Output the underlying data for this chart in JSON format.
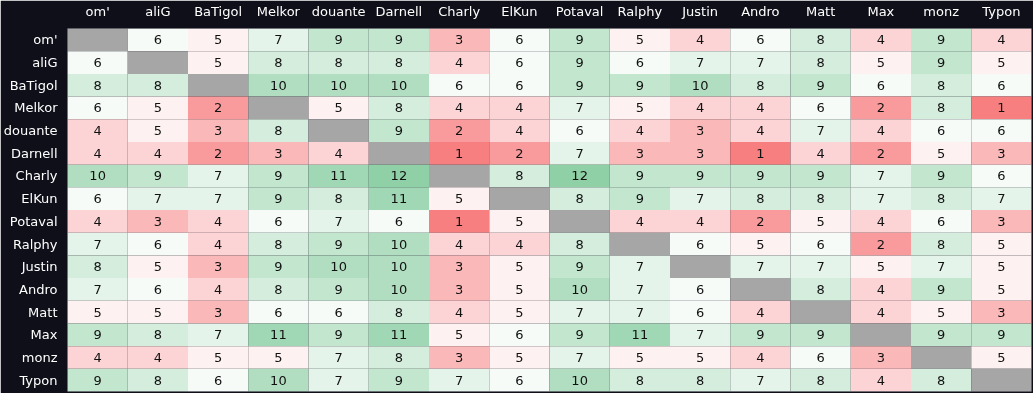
{
  "chart_data": {
    "type": "heatmap",
    "categories": [
      "om'",
      "aliG",
      "BaTigol",
      "Melkor",
      "douante",
      "Darnell",
      "Charly",
      "ElKun",
      "Potaval",
      "Ralphy",
      "Justin",
      "Andro",
      "Matt",
      "Max",
      "monz",
      "Typon"
    ],
    "y_categories": [
      "om'",
      "aliG",
      "BaTigol",
      "Melkor",
      "douante",
      "Darnell",
      "Charly",
      "ElKun",
      "Potaval",
      "Ralphy",
      "Justin",
      "Andro",
      "Matt",
      "Max",
      "monz",
      "Typon"
    ],
    "cells": [
      [
        null,
        6,
        5,
        7,
        9,
        9,
        3,
        6,
        9,
        5,
        4,
        6,
        8,
        4,
        9,
        4
      ],
      [
        6,
        null,
        5,
        8,
        8,
        8,
        4,
        6,
        9,
        6,
        7,
        7,
        8,
        5,
        9,
        5
      ],
      [
        8,
        8,
        null,
        10,
        10,
        10,
        6,
        6,
        9,
        9,
        10,
        8,
        9,
        6,
        8,
        6
      ],
      [
        6,
        5,
        2,
        null,
        5,
        8,
        4,
        4,
        7,
        5,
        4,
        4,
        6,
        2,
        8,
        1
      ],
      [
        4,
        5,
        3,
        8,
        null,
        9,
        2,
        4,
        6,
        4,
        3,
        4,
        7,
        4,
        6,
        6
      ],
      [
        4,
        4,
        2,
        3,
        4,
        null,
        1,
        2,
        7,
        3,
        3,
        1,
        4,
        2,
        5,
        3
      ],
      [
        10,
        9,
        7,
        9,
        11,
        12,
        null,
        8,
        12,
        9,
        9,
        9,
        9,
        7,
        9,
        6
      ],
      [
        6,
        7,
        7,
        9,
        8,
        11,
        5,
        null,
        8,
        9,
        7,
        8,
        8,
        7,
        8,
        7
      ],
      [
        4,
        3,
        4,
        6,
        7,
        6,
        1,
        5,
        null,
        4,
        4,
        2,
        5,
        4,
        6,
        3
      ],
      [
        7,
        6,
        4,
        8,
        9,
        10,
        4,
        4,
        8,
        null,
        6,
        5,
        6,
        2,
        8,
        5
      ],
      [
        8,
        5,
        3,
        9,
        10,
        10,
        3,
        5,
        9,
        7,
        null,
        7,
        7,
        5,
        7,
        5
      ],
      [
        7,
        6,
        4,
        8,
        9,
        10,
        3,
        5,
        10,
        7,
        6,
        null,
        8,
        4,
        9,
        5
      ],
      [
        5,
        5,
        3,
        6,
        6,
        8,
        4,
        5,
        7,
        7,
        6,
        4,
        null,
        4,
        5,
        3
      ],
      [
        9,
        8,
        7,
        11,
        9,
        11,
        5,
        6,
        9,
        11,
        7,
        9,
        9,
        null,
        9,
        9
      ],
      [
        4,
        4,
        5,
        5,
        7,
        8,
        3,
        5,
        7,
        5,
        5,
        4,
        6,
        3,
        null,
        5
      ],
      [
        9,
        8,
        6,
        10,
        7,
        9,
        7,
        6,
        10,
        8,
        8,
        7,
        8,
        4,
        8,
        null
      ]
    ],
    "data_labels": true
  }
}
